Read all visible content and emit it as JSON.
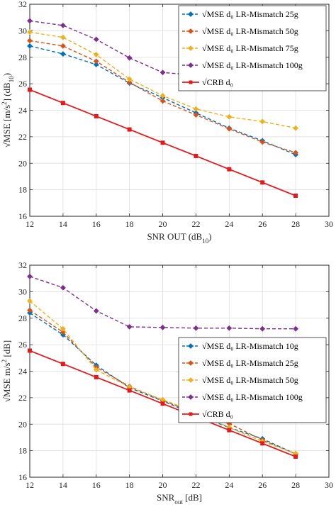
{
  "chart_data": [
    {
      "type": "line",
      "x": [
        12,
        14,
        16,
        18,
        20,
        22,
        24,
        26,
        28
      ],
      "xlim": [
        12,
        30
      ],
      "ylim": [
        16,
        32
      ],
      "xticks": [
        "12",
        "14",
        "16",
        "18",
        "20",
        "22",
        "24",
        "26",
        "28",
        "30"
      ],
      "yticks": [
        "16",
        "18",
        "20",
        "22",
        "24",
        "26",
        "28",
        "30",
        "32"
      ],
      "xlabel_main": "SNR OUT (dB",
      "xlabel_sub": "10",
      "xlabel_end": ")",
      "ylabel_main": "√MSE [m/s",
      "ylabel_sup": "2",
      "ylabel_mid": "] (dB",
      "ylabel_sub": "10",
      "ylabel_end": ")",
      "grid": true,
      "legend_position": "top-right",
      "series": [
        {
          "name": "√MSE d₀ LR-Mismatch 25g",
          "color": "#0072BD",
          "dash": true,
          "marker": "diamond",
          "values": [
            28.85,
            28.25,
            27.45,
            26.05,
            24.95,
            23.8,
            22.65,
            21.7,
            20.65
          ]
        },
        {
          "name": "√MSE d₀ LR-Mismatch 50g",
          "color": "#D95319",
          "dash": true,
          "marker": "diamond",
          "values": [
            29.25,
            28.85,
            27.7,
            26.1,
            24.7,
            23.65,
            22.6,
            21.6,
            20.8
          ]
        },
        {
          "name": "√MSE d₀ LR-Mismatch 75g",
          "color": "#EDB120",
          "dash": true,
          "marker": "diamond",
          "values": [
            29.9,
            29.5,
            28.2,
            26.35,
            25.1,
            24.1,
            23.5,
            23.15,
            22.65
          ]
        },
        {
          "name": "√MSE d₀ LR-Mismatch 100g",
          "color": "#7E2F8E",
          "dash": true,
          "marker": "diamond",
          "values": [
            30.75,
            30.4,
            29.35,
            27.95,
            26.85,
            26.65,
            26.5,
            26.3,
            26.2
          ]
        },
        {
          "name": "√CRB d₀",
          "color": "#E31A1C",
          "dash": false,
          "marker": "square",
          "values": [
            25.55,
            24.55,
            23.55,
            22.55,
            21.55,
            20.55,
            19.55,
            18.55,
            17.55
          ]
        }
      ]
    },
    {
      "type": "line",
      "x": [
        12,
        14,
        16,
        18,
        20,
        22,
        24,
        26,
        28
      ],
      "xlim": [
        12,
        30
      ],
      "ylim": [
        16,
        32
      ],
      "xticks": [
        "12",
        "14",
        "16",
        "18",
        "20",
        "22",
        "24",
        "26",
        "28",
        "30"
      ],
      "yticks": [
        "16",
        "18",
        "20",
        "22",
        "24",
        "26",
        "28",
        "30",
        "32"
      ],
      "xlabel_main": "SNR",
      "xlabel_sub": "out",
      "xlabel_end": " [dB]",
      "ylabel_main": "√MSE m/s",
      "ylabel_sup": "2",
      "ylabel_mid": " [dB]",
      "ylabel_sub": "",
      "ylabel_end": "",
      "grid": true,
      "legend_position": "center-right",
      "series": [
        {
          "name": "√MSE d₀ LR-Mismatch 10g",
          "color": "#0072BD",
          "dash": true,
          "marker": "diamond",
          "values": [
            28.4,
            26.75,
            24.45,
            22.75,
            21.75,
            20.7,
            19.75,
            18.9,
            17.75
          ]
        },
        {
          "name": "√MSE d₀ LR-Mismatch 25g",
          "color": "#D95319",
          "dash": true,
          "marker": "diamond",
          "values": [
            28.6,
            26.95,
            24.3,
            22.85,
            21.8,
            20.8,
            20.05,
            18.8,
            17.75
          ]
        },
        {
          "name": "√MSE d₀ LR-Mismatch 50g",
          "color": "#EDB120",
          "dash": true,
          "marker": "diamond",
          "values": [
            29.3,
            27.2,
            24.1,
            22.8,
            21.85,
            20.9,
            19.75,
            18.7,
            17.8
          ]
        },
        {
          "name": "√MSE d₀ LR-Mismatch 100g",
          "color": "#7E2F8E",
          "dash": true,
          "marker": "diamond",
          "values": [
            31.15,
            30.3,
            28.55,
            27.35,
            27.3,
            27.25,
            27.25,
            27.2,
            27.2
          ]
        },
        {
          "name": "√CRB d₀",
          "color": "#E31A1C",
          "dash": false,
          "marker": "square",
          "values": [
            25.55,
            24.55,
            23.55,
            22.55,
            21.55,
            20.55,
            19.55,
            18.55,
            17.55
          ]
        }
      ]
    }
  ]
}
